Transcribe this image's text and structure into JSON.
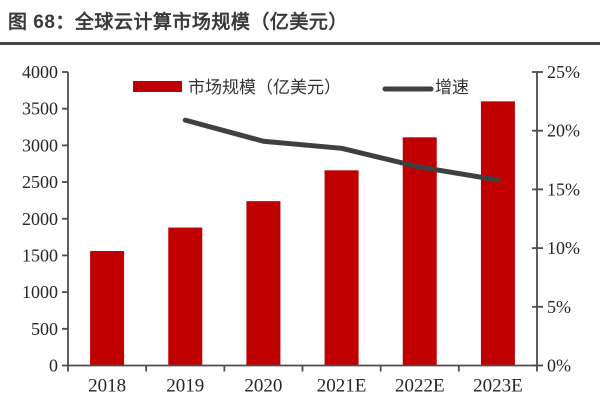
{
  "header": {
    "figure_title": "图 68：全球云计算市场规模（亿美元）"
  },
  "chart_data": {
    "type": "bar",
    "subtype": "bar-line-combo",
    "title": "全球云计算市场规模（亿美元）",
    "categories": [
      "2018",
      "2019",
      "2020",
      "2021E",
      "2022E",
      "2023E"
    ],
    "series": [
      {
        "name": "市场规模（亿美元）",
        "type": "bar",
        "axis": "left",
        "color": "#C00000",
        "values": [
          1560,
          1880,
          2240,
          2660,
          3110,
          3600
        ]
      },
      {
        "name": "增速",
        "type": "line",
        "axis": "right",
        "color": "#404040",
        "values": [
          null,
          20.9,
          19.1,
          18.5,
          16.9,
          15.8
        ]
      }
    ],
    "left_axis": {
      "min": 0,
      "max": 4000,
      "step": 500,
      "tick_labels": [
        "0",
        "500",
        "1000",
        "1500",
        "2000",
        "2500",
        "3000",
        "3500",
        "4000"
      ]
    },
    "right_axis": {
      "min": 0,
      "max": 25,
      "step": 5,
      "tick_labels": [
        "0%",
        "5%",
        "10%",
        "15%",
        "20%",
        "25%"
      ]
    },
    "legend": {
      "position": "top-inside",
      "items": [
        "市场规模（亿美元）",
        "增速"
      ]
    },
    "grid": false
  },
  "colors": {
    "bar": "#C00000",
    "line": "#404040",
    "axis": "#4d4d4d",
    "tick_text": "#262626",
    "title_text": "#3b3b3b",
    "title_rule": "#454545",
    "background": "#ffffff"
  }
}
